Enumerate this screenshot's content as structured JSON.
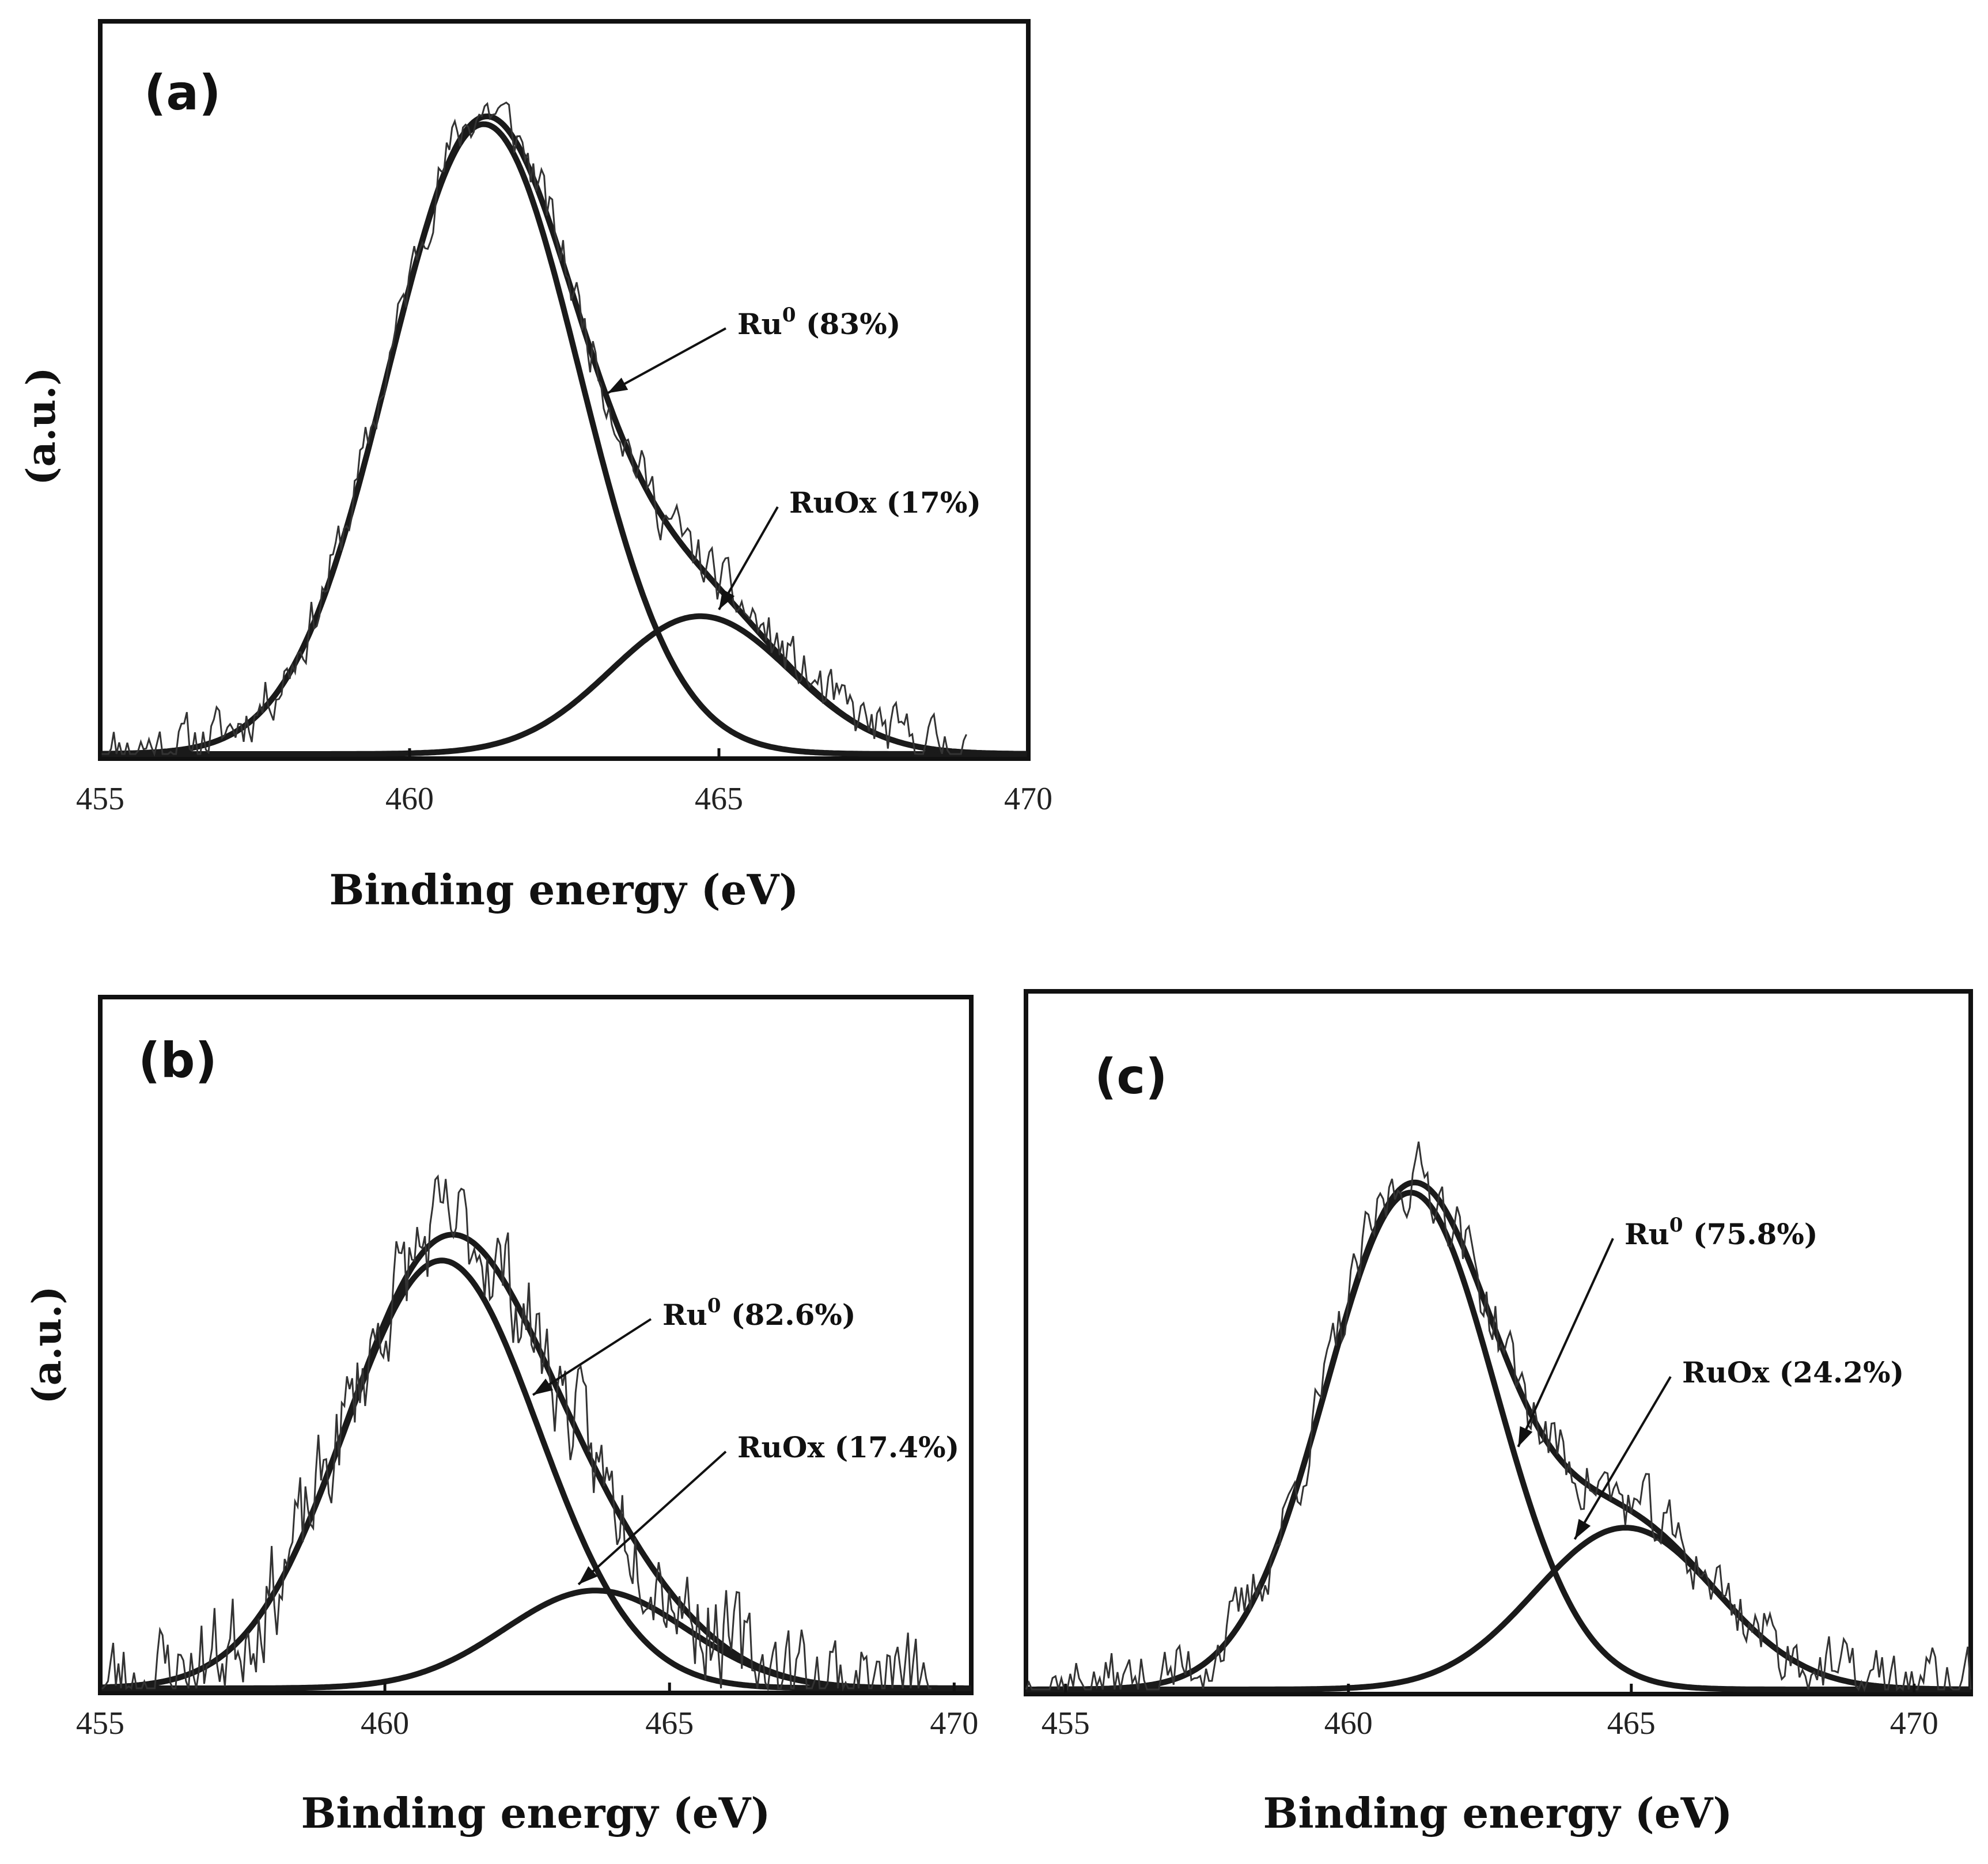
{
  "chart_data": [
    {
      "type": "line",
      "panel_label": "(a)",
      "xlabel": "Binding energy (eV)",
      "ylabel": "(a.u.)",
      "xlim": [
        455,
        470
      ],
      "ylim": [
        0,
        1
      ],
      "x_ticks": [
        455,
        460,
        465,
        470
      ],
      "grid": false,
      "series": [
        {
          "name": "Ru0 component",
          "kind": "gaussian",
          "center": 461.2,
          "height": 0.96,
          "sigma": 1.55
        },
        {
          "name": "RuOx component",
          "kind": "gaussian",
          "center": 464.7,
          "height": 0.21,
          "sigma": 1.45
        },
        {
          "name": "Envelope",
          "kind": "sum"
        },
        {
          "name": "Experimental",
          "kind": "noisy",
          "noise": 0.035,
          "seed": 11,
          "x_end": 469
        }
      ],
      "annotations": [
        {
          "base": "Ru",
          "sup": "0",
          "rest": " (83%)",
          "x_target": 463.2,
          "y_target": 0.55
        },
        {
          "base": "RuOx (17%)",
          "sup": "",
          "rest": "",
          "x_target": 465.0,
          "y_target": 0.22
        }
      ]
    },
    {
      "type": "line",
      "panel_label": "(b)",
      "xlabel": "Binding energy (eV)",
      "ylabel": "(a.u.)",
      "xlim": [
        455,
        470.3
      ],
      "ylim": [
        0,
        1
      ],
      "x_ticks": [
        455,
        460,
        465,
        470
      ],
      "grid": false,
      "series": [
        {
          "name": "Ru0 component",
          "kind": "gaussian",
          "center": 461.0,
          "height": 0.7,
          "sigma": 1.7
        },
        {
          "name": "RuOx component",
          "kind": "gaussian",
          "center": 463.7,
          "height": 0.16,
          "sigma": 1.6
        },
        {
          "name": "Envelope",
          "kind": "sum"
        },
        {
          "name": "Experimental",
          "kind": "noisy",
          "noise": 0.075,
          "seed": 23,
          "x_end": 469.6
        }
      ],
      "annotations": [
        {
          "base": "Ru",
          "sup": "0",
          "rest": " (82.6%)",
          "x_target": 462.6,
          "y_target": 0.48
        },
        {
          "base": "RuOx (17.4%)",
          "sup": "",
          "rest": "",
          "x_target": 463.4,
          "y_target": 0.17
        }
      ]
    },
    {
      "type": "line",
      "panel_label": "(c)",
      "xlabel": "Binding energy (eV)",
      "ylabel": "",
      "xlim": [
        454.3,
        471
      ],
      "ylim": [
        0,
        1
      ],
      "x_ticks": [
        455,
        460,
        465,
        470
      ],
      "grid": false,
      "series": [
        {
          "name": "Ru0 component",
          "kind": "gaussian",
          "center": 461.1,
          "height": 0.86,
          "sigma": 1.5
        },
        {
          "name": "RuOx component",
          "kind": "gaussian",
          "center": 464.9,
          "height": 0.28,
          "sigma": 1.6
        },
        {
          "name": "Envelope",
          "kind": "sum"
        },
        {
          "name": "Experimental",
          "kind": "noisy",
          "noise": 0.05,
          "seed": 37,
          "x_end": 471
        }
      ],
      "annotations": [
        {
          "base": "Ru",
          "sup": "0",
          "rest": " (75.8%)",
          "x_target": 463.0,
          "y_target": 0.42
        },
        {
          "base": "RuOx (24.2%)",
          "sup": "",
          "rest": "",
          "x_target": 464.0,
          "y_target": 0.26
        }
      ]
    }
  ]
}
